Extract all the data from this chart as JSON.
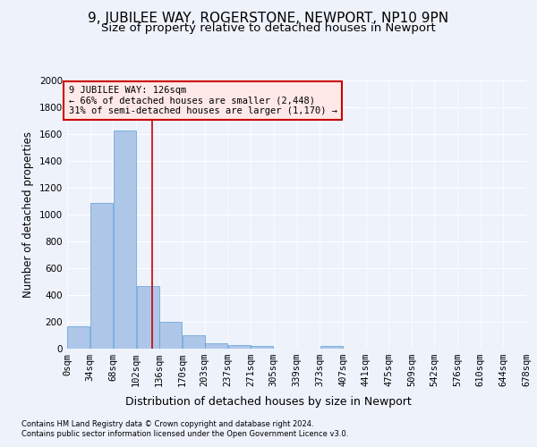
{
  "title1": "9, JUBILEE WAY, ROGERSTONE, NEWPORT, NP10 9PN",
  "title2": "Size of property relative to detached houses in Newport",
  "xlabel": "Distribution of detached houses by size in Newport",
  "ylabel": "Number of detached properties",
  "property_size": 126,
  "annotation_line1": "9 JUBILEE WAY: 126sqm",
  "annotation_line2": "← 66% of detached houses are smaller (2,448)",
  "annotation_line3": "31% of semi-detached houses are larger (1,170) →",
  "footer1": "Contains HM Land Registry data © Crown copyright and database right 2024.",
  "footer2": "Contains public sector information licensed under the Open Government Licence v3.0.",
  "bins": [
    0,
    34,
    68,
    102,
    136,
    170,
    203,
    237,
    271,
    305,
    339,
    373,
    407,
    441,
    475,
    509,
    542,
    576,
    610,
    644,
    678
  ],
  "bin_labels": [
    "0sqm",
    "34sqm",
    "68sqm",
    "102sqm",
    "136sqm",
    "170sqm",
    "203sqm",
    "237sqm",
    "271sqm",
    "305sqm",
    "339sqm",
    "373sqm",
    "407sqm",
    "441sqm",
    "475sqm",
    "509sqm",
    "542sqm",
    "576sqm",
    "610sqm",
    "644sqm",
    "678sqm"
  ],
  "bar_values": [
    165,
    1090,
    1630,
    470,
    200,
    100,
    43,
    30,
    20,
    0,
    0,
    20,
    0,
    0,
    0,
    0,
    0,
    0,
    0,
    0
  ],
  "bar_color": "#aec6e8",
  "bar_edgecolor": "#5a9fd4",
  "vline_x": 126,
  "vline_color": "#cc0000",
  "ylim": [
    0,
    2000
  ],
  "yticks": [
    0,
    200,
    400,
    600,
    800,
    1000,
    1200,
    1400,
    1600,
    1800,
    2000
  ],
  "bg_color": "#eef2fb",
  "annotation_box_facecolor": "#ffe8e8",
  "annotation_box_edgecolor": "#cc0000",
  "title1_fontsize": 11,
  "title2_fontsize": 9.5,
  "xlabel_fontsize": 9,
  "ylabel_fontsize": 8.5,
  "tick_fontsize": 7.5,
  "annotation_fontsize": 7.5,
  "footer_fontsize": 6.0
}
